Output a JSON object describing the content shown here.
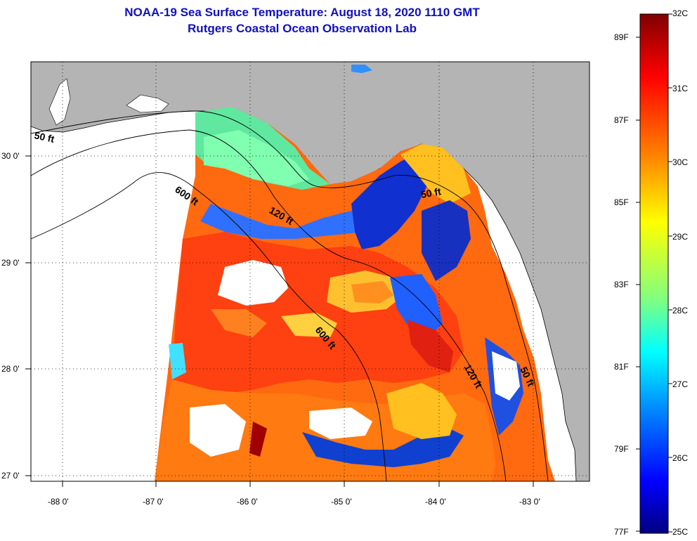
{
  "header": {
    "title_line1": "NOAA-19 Sea Surface Temperature:  August 18, 2020 1110 GMT",
    "title_line2": "Rutgers Coastal Ocean Observation Lab"
  },
  "map": {
    "lon_ticks": [
      "-88 0'",
      "-87 0'",
      "-86 0'",
      "-85 0'",
      "-84 0'",
      "-83 0'"
    ],
    "lat_ticks": [
      "30 0'",
      "29 0'",
      "28 0'",
      "27 0'"
    ],
    "isobath_labels": [
      "50 ft",
      "600 ft",
      "120 ft",
      "50 ft",
      "600 ft",
      "120 ft",
      "50 ft"
    ],
    "land_color": "#b4b4b4",
    "nodata_color": "#ffffff"
  },
  "colorbar": {
    "celsius_labels": [
      "32C",
      "31C",
      "30C",
      "29C",
      "28C",
      "27C",
      "26C",
      "25C"
    ],
    "fahrenheit_labels": [
      "89F",
      "87F",
      "85F",
      "83F",
      "81F",
      "79F",
      "77F"
    ],
    "colors": [
      "#800000",
      "#ff0000",
      "#ff8000",
      "#ffff00",
      "#80ff80",
      "#00ffff",
      "#0080ff",
      "#0000ff",
      "#000080"
    ]
  }
}
